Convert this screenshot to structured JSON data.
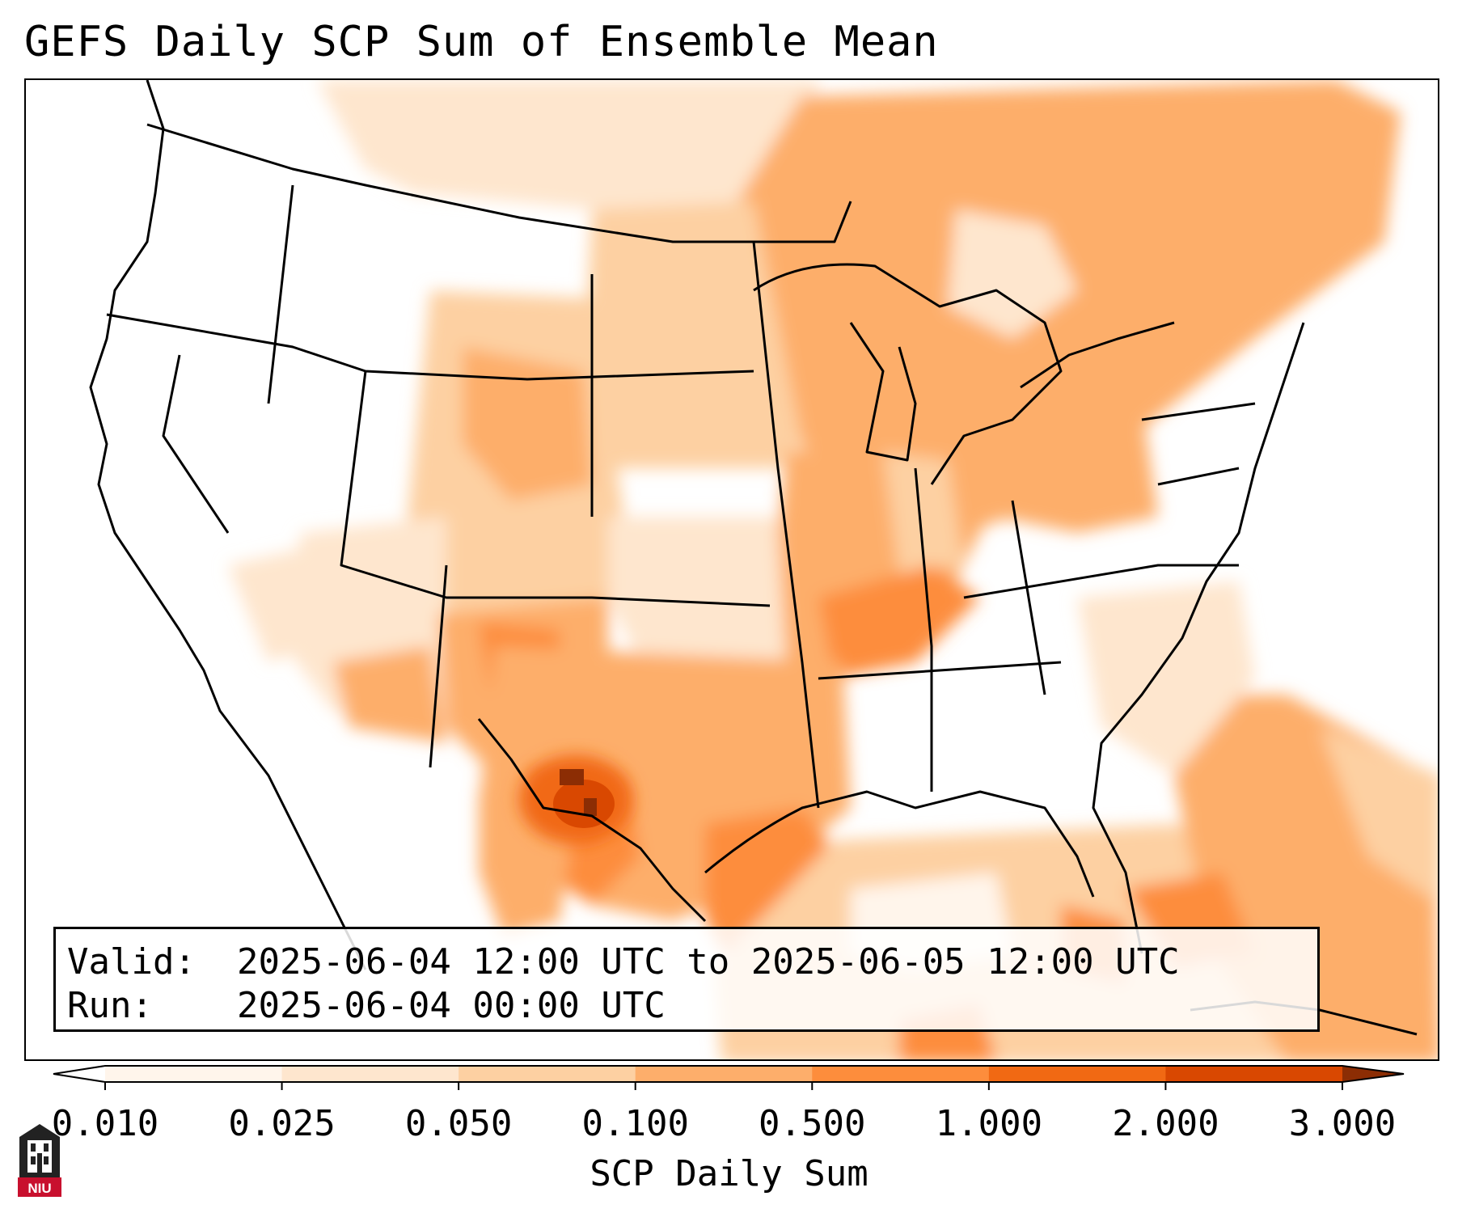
{
  "title": "GEFS Daily SCP Sum of Ensemble Mean",
  "info": {
    "valid_label": "Valid:",
    "valid_value": "2025-06-04 12:00 UTC to 2025-06-05 12:00 UTC",
    "run_label": "Run:",
    "run_value": "2025-06-04 00:00 UTC"
  },
  "colorbar": {
    "label": "SCP Daily Sum",
    "ticks": [
      "0.010",
      "0.025",
      "0.050",
      "0.100",
      "0.500",
      "1.000",
      "2.000",
      "3.000"
    ],
    "colors": [
      "#fff5eb",
      "#fee6ce",
      "#fdd0a2",
      "#fdae6b",
      "#fd8d3c",
      "#f16913",
      "#d94801",
      "#8c2d04"
    ],
    "extend": "both"
  },
  "logo": {
    "text": "NIU",
    "color": "#c8102e"
  }
}
